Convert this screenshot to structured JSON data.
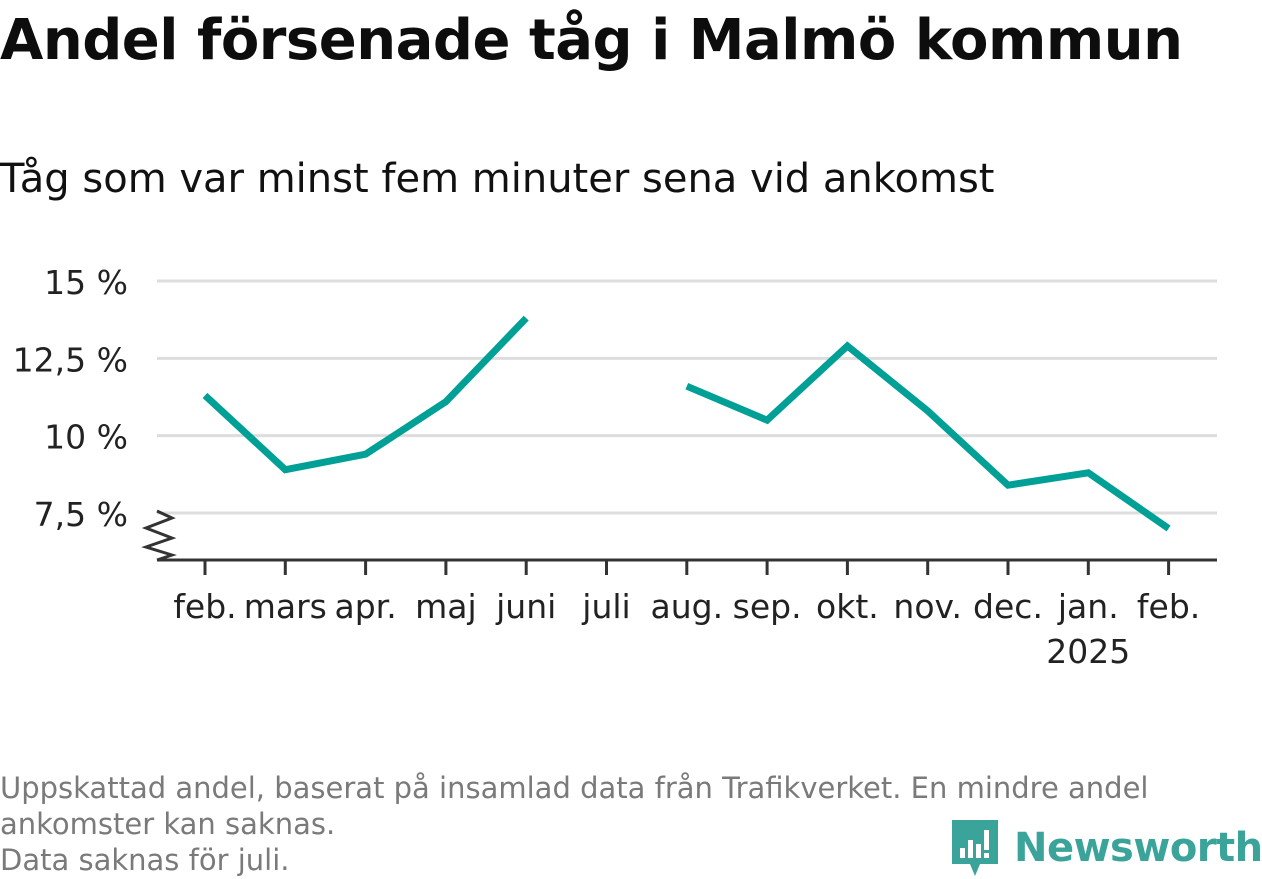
{
  "title": "Andel försenade tåg i Malmö kommun",
  "subtitle": "Tåg som var minst fem minuter sena vid ankomst",
  "footnote": {
    "line1": "Uppskattad andel, baserat på insamlad data från Trafikverket. En mindre andel",
    "line2": "ankomster kan saknas.",
    "line3": "Data saknas för juli."
  },
  "brand": {
    "name": "Newsworthy",
    "icon": "newsworthy-logo-icon",
    "color": "#3aa39a"
  },
  "chart_data": {
    "type": "line",
    "categories": [
      "feb.",
      "mars",
      "apr.",
      "maj",
      "juni",
      "juli",
      "aug.",
      "sep.",
      "okt.",
      "nov.",
      "dec.",
      "jan.",
      "feb."
    ],
    "x_sublabels": [
      "",
      "",
      "",
      "",
      "",
      "",
      "",
      "",
      "",
      "",
      "",
      "2025",
      ""
    ],
    "series": [
      {
        "values": [
          11.3,
          8.9,
          9.4,
          11.1,
          13.8,
          null,
          11.6,
          10.5,
          12.9,
          10.8,
          8.4,
          8.8,
          7.0
        ],
        "color": "#00a096"
      }
    ],
    "yticks": [
      {
        "value": 7.5,
        "label": "7,5 %"
      },
      {
        "value": 10,
        "label": "10 %"
      },
      {
        "value": 12.5,
        "label": "12,5 %"
      },
      {
        "value": 15,
        "label": "15 %"
      }
    ],
    "ylim": [
      6,
      15
    ],
    "y_axis_break": true,
    "grid": true,
    "xlabel": "",
    "ylabel": ""
  }
}
